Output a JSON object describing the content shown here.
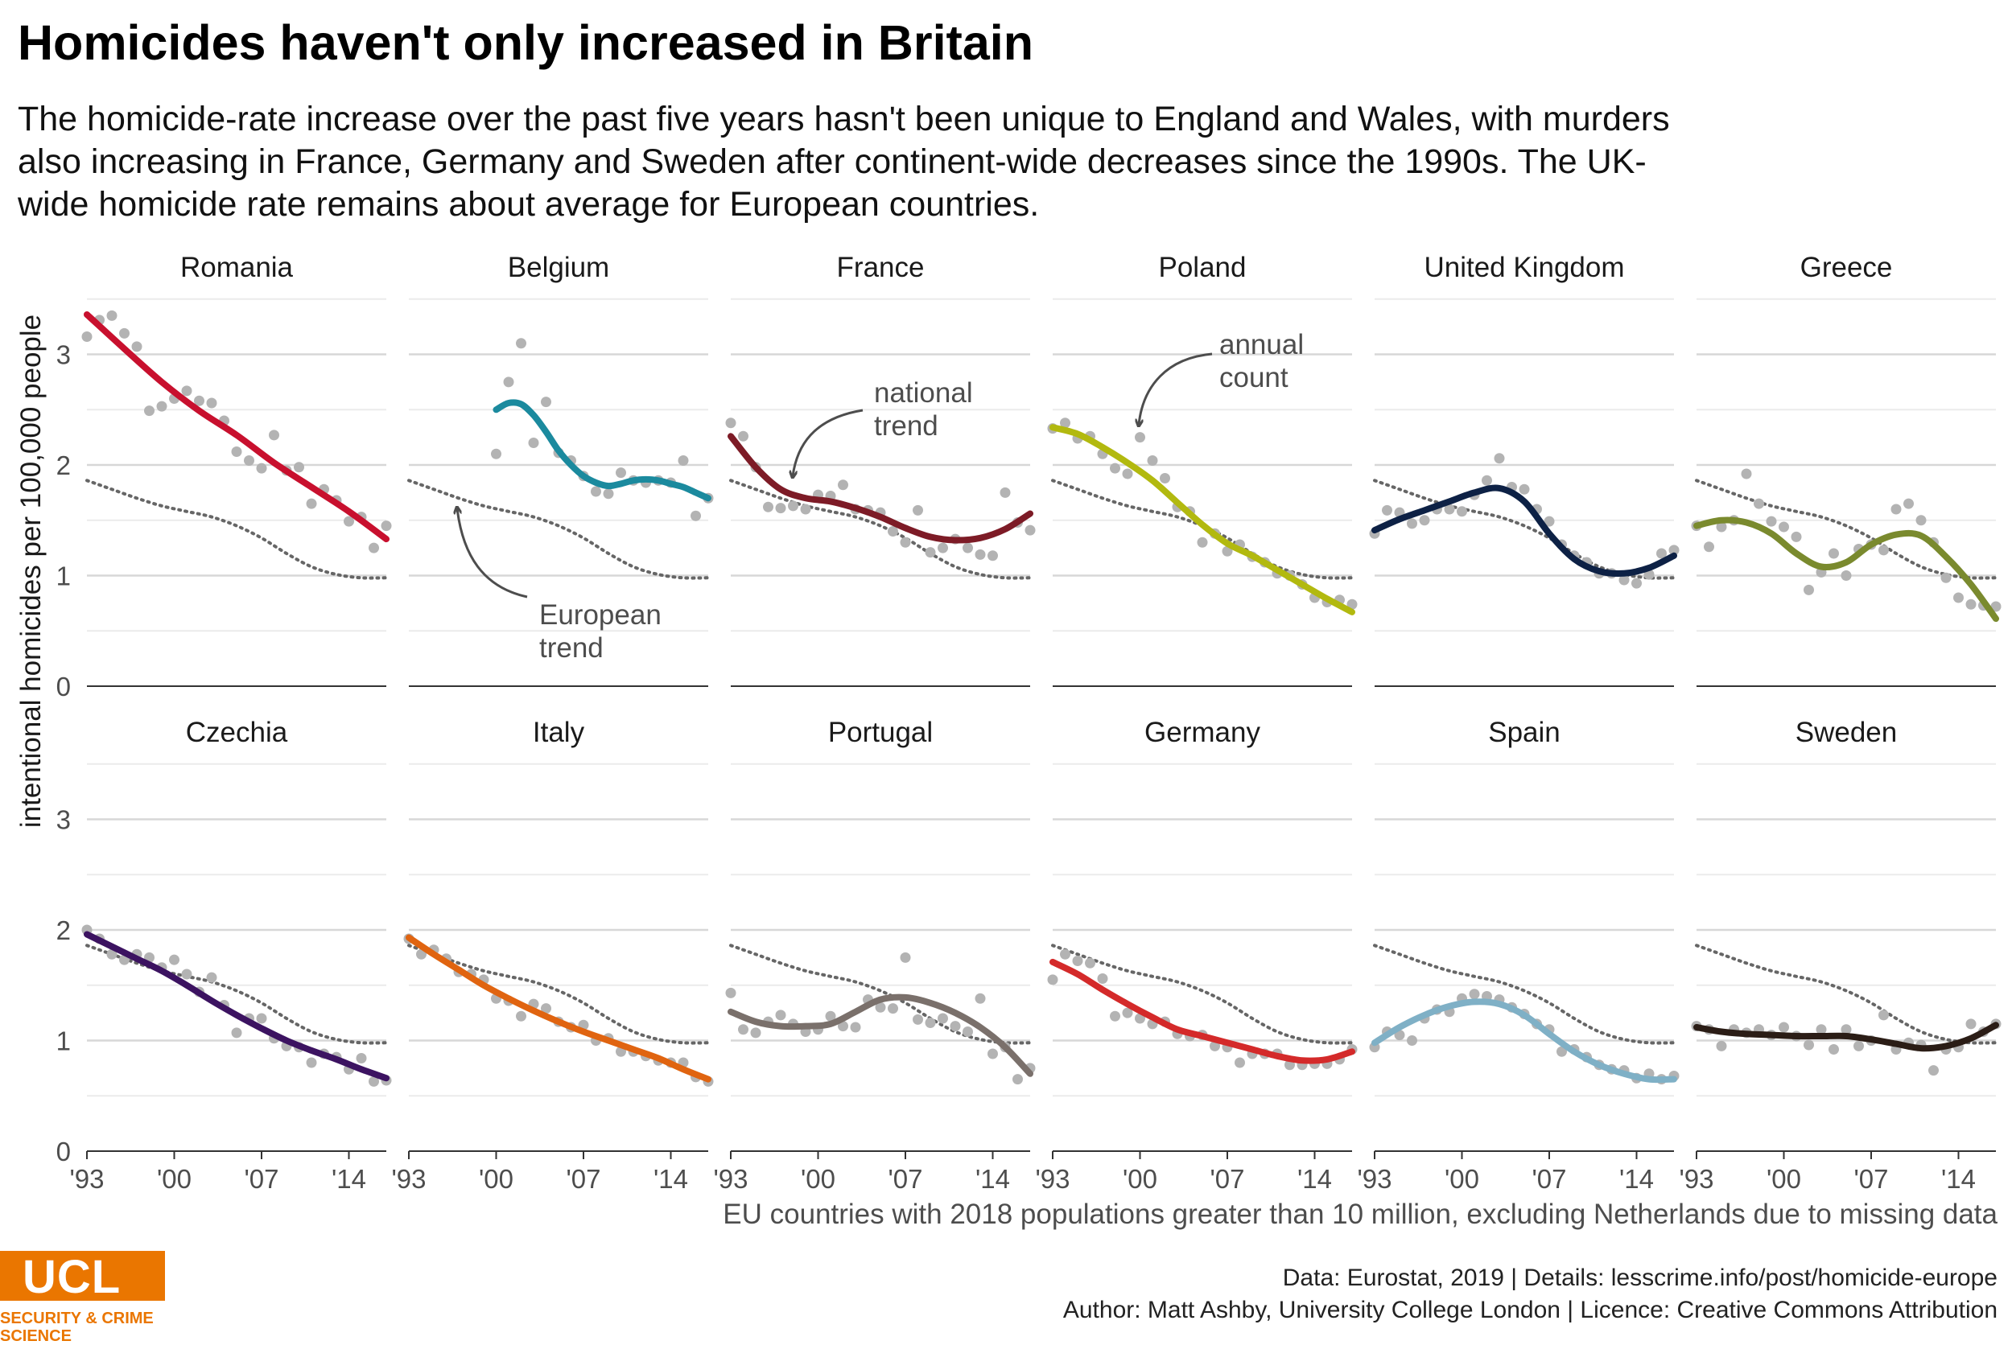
{
  "header": {
    "title": "Homicides haven't only increased in Britain",
    "subtitle": "The homicide-rate increase over the past five years hasn't been unique to England and Wales, with murders also increasing in France, Germany and Sweden after continent-wide decreases since the 1990s. The UK-wide homicide rate remains about average for European countries."
  },
  "footer": {
    "caption": "EU countries with 2018 populations greater than 10 million, excluding Netherlands due to missing data",
    "data_credit": "Data: Eurostat, 2019 |  Details: lesscrime.info/post/homicide-europe",
    "author_credit": "Author: Matt Ashby, University College London |  Licence: Creative Commons Attribution"
  },
  "logo": {
    "wordmark": "UCL",
    "department": "SECURITY & CRIME SCIENCE",
    "color": "#ea7600"
  },
  "chart_data": {
    "type": "line",
    "ylabel": "intentional homicides per 100,000 people",
    "ylim": [
      0,
      3.5
    ],
    "yticks": [
      0,
      1,
      2,
      3
    ],
    "xlim": [
      1993,
      2017
    ],
    "xticks": [
      1993,
      2000,
      2007,
      2014
    ],
    "xticklabels": [
      "'93",
      "'00",
      "'07",
      "'14"
    ],
    "annotations": {
      "european_trend": "European trend",
      "national_trend": "national trend",
      "annual_count": "annual count"
    },
    "european_trend": {
      "x": [
        1993,
        1995,
        1997,
        1999,
        2001,
        2003,
        2005,
        2007,
        2009,
        2011,
        2013,
        2015,
        2017
      ],
      "y": [
        1.86,
        1.78,
        1.7,
        1.63,
        1.58,
        1.53,
        1.45,
        1.34,
        1.2,
        1.08,
        1.01,
        0.98,
        0.98
      ]
    },
    "panels": [
      {
        "country": "Romania",
        "color": "#c8102e",
        "points_x": [
          1993,
          1994,
          1995,
          1996,
          1997,
          1998,
          1999,
          2000,
          2001,
          2002,
          2003,
          2004,
          2005,
          2006,
          2007,
          2008,
          2009,
          2010,
          2011,
          2012,
          2013,
          2014,
          2015,
          2016,
          2017
        ],
        "points_y": [
          3.16,
          3.31,
          3.35,
          3.19,
          3.07,
          2.49,
          2.53,
          2.6,
          2.67,
          2.58,
          2.56,
          2.4,
          2.12,
          2.04,
          1.97,
          2.27,
          1.95,
          1.98,
          1.65,
          1.78,
          1.68,
          1.49,
          1.53,
          1.25,
          1.45
        ],
        "trend_x": [
          1993,
          1996,
          1999,
          2002,
          2005,
          2008,
          2011,
          2014,
          2017
        ],
        "trend_y": [
          3.36,
          3.05,
          2.75,
          2.49,
          2.27,
          2.02,
          1.8,
          1.58,
          1.33
        ]
      },
      {
        "country": "Belgium",
        "color": "#1b8a9e",
        "points_x": [
          2000,
          2001,
          2002,
          2003,
          2004,
          2005,
          2006,
          2007,
          2008,
          2009,
          2010,
          2011,
          2012,
          2013,
          2014,
          2015,
          2016,
          2017
        ],
        "points_y": [
          2.1,
          2.75,
          3.1,
          2.2,
          2.57,
          2.11,
          2.04,
          1.9,
          1.76,
          1.74,
          1.93,
          1.86,
          1.84,
          1.86,
          1.84,
          2.04,
          1.54,
          1.7
        ],
        "trend_x": [
          2000,
          2001,
          2002,
          2003,
          2004,
          2005,
          2006,
          2007,
          2008,
          2009,
          2010,
          2011,
          2012,
          2013,
          2014,
          2015,
          2016,
          2017
        ],
        "trend_y": [
          2.5,
          2.56,
          2.55,
          2.45,
          2.3,
          2.13,
          2.0,
          1.9,
          1.84,
          1.81,
          1.83,
          1.86,
          1.87,
          1.86,
          1.83,
          1.8,
          1.75,
          1.7
        ]
      },
      {
        "country": "France",
        "color": "#7d1b26",
        "points_x": [
          1993,
          1994,
          1995,
          1996,
          1997,
          1998,
          1999,
          2000,
          2001,
          2002,
          2003,
          2004,
          2005,
          2006,
          2007,
          2008,
          2009,
          2010,
          2011,
          2012,
          2013,
          2014,
          2015,
          2016,
          2017
        ],
        "points_y": [
          2.38,
          2.26,
          1.98,
          1.62,
          1.61,
          1.63,
          1.6,
          1.73,
          1.72,
          1.82,
          1.6,
          1.59,
          1.57,
          1.4,
          1.3,
          1.59,
          1.21,
          1.25,
          1.33,
          1.25,
          1.19,
          1.18,
          1.75,
          1.48,
          1.41
        ],
        "trend_x": [
          1993,
          1995,
          1997,
          1999,
          2001,
          2003,
          2005,
          2007,
          2009,
          2011,
          2013,
          2015,
          2017
        ],
        "trend_y": [
          2.26,
          1.98,
          1.78,
          1.7,
          1.67,
          1.61,
          1.53,
          1.43,
          1.35,
          1.32,
          1.34,
          1.42,
          1.56
        ]
      },
      {
        "country": "Poland",
        "color": "#b2b90f",
        "points_x": [
          1993,
          1994,
          1995,
          1996,
          1997,
          1998,
          1999,
          2000,
          2001,
          2002,
          2003,
          2004,
          2005,
          2006,
          2007,
          2008,
          2009,
          2010,
          2011,
          2012,
          2013,
          2014,
          2015,
          2016,
          2017
        ],
        "points_y": [
          2.33,
          2.38,
          2.24,
          2.26,
          2.1,
          1.97,
          1.92,
          2.25,
          2.04,
          1.88,
          1.62,
          1.58,
          1.3,
          1.38,
          1.22,
          1.28,
          1.17,
          1.12,
          1.02,
          1.0,
          0.92,
          0.8,
          0.76,
          0.78,
          0.74
        ],
        "trend_x": [
          1993,
          1995,
          1997,
          1999,
          2001,
          2003,
          2005,
          2007,
          2009,
          2011,
          2013,
          2015,
          2017
        ],
        "trend_y": [
          2.34,
          2.28,
          2.16,
          2.02,
          1.86,
          1.66,
          1.46,
          1.29,
          1.18,
          1.05,
          0.92,
          0.79,
          0.67
        ]
      },
      {
        "country": "United Kingdom",
        "color": "#0d2145",
        "points_x": [
          1993,
          1994,
          1995,
          1996,
          1997,
          1998,
          1999,
          2000,
          2001,
          2002,
          2003,
          2004,
          2005,
          2006,
          2007,
          2008,
          2009,
          2010,
          2011,
          2012,
          2013,
          2014,
          2015,
          2016,
          2017
        ],
        "points_y": [
          1.38,
          1.59,
          1.57,
          1.47,
          1.5,
          1.6,
          1.6,
          1.58,
          1.73,
          1.86,
          2.06,
          1.8,
          1.78,
          1.6,
          1.49,
          1.28,
          1.18,
          1.12,
          1.02,
          1.02,
          0.96,
          0.93,
          1.01,
          1.2,
          1.23
        ],
        "trend_x": [
          1993,
          1995,
          1997,
          1999,
          2001,
          2003,
          2005,
          2007,
          2009,
          2011,
          2013,
          2015,
          2017
        ],
        "trend_y": [
          1.41,
          1.51,
          1.59,
          1.67,
          1.75,
          1.79,
          1.67,
          1.38,
          1.15,
          1.04,
          1.02,
          1.07,
          1.18
        ]
      },
      {
        "country": "Greece",
        "color": "#7a8a2e",
        "points_x": [
          1993,
          1994,
          1995,
          1996,
          1997,
          1998,
          1999,
          2000,
          2001,
          2002,
          2003,
          2004,
          2005,
          2006,
          2007,
          2008,
          2009,
          2010,
          2011,
          2012,
          2013,
          2014,
          2015,
          2016,
          2017
        ],
        "points_y": [
          1.45,
          1.26,
          1.44,
          1.5,
          1.92,
          1.65,
          1.49,
          1.44,
          1.35,
          0.87,
          1.03,
          1.2,
          1.0,
          1.24,
          1.28,
          1.23,
          1.6,
          1.65,
          1.5,
          1.3,
          0.98,
          0.8,
          0.74,
          0.73,
          0.72
        ],
        "trend_x": [
          1993,
          1995,
          1997,
          1999,
          2001,
          2003,
          2005,
          2007,
          2009,
          2011,
          2013,
          2015,
          2017
        ],
        "trend_y": [
          1.45,
          1.5,
          1.48,
          1.38,
          1.2,
          1.08,
          1.12,
          1.28,
          1.37,
          1.36,
          1.17,
          0.92,
          0.61
        ]
      },
      {
        "country": "Czechia",
        "color": "#3c1361",
        "points_x": [
          1993,
          1994,
          1995,
          1996,
          1997,
          1998,
          1999,
          2000,
          2001,
          2002,
          2003,
          2004,
          2005,
          2006,
          2007,
          2008,
          2009,
          2010,
          2011,
          2012,
          2013,
          2014,
          2015,
          2016,
          2017
        ],
        "points_y": [
          2.0,
          1.92,
          1.78,
          1.73,
          1.78,
          1.75,
          1.66,
          1.73,
          1.6,
          1.44,
          1.57,
          1.32,
          1.07,
          1.2,
          1.2,
          1.02,
          0.95,
          0.94,
          0.8,
          0.88,
          0.85,
          0.74,
          0.84,
          0.63,
          0.64
        ],
        "trend_x": [
          1993,
          1995,
          1997,
          1999,
          2001,
          2003,
          2005,
          2007,
          2009,
          2011,
          2013,
          2015,
          2017
        ],
        "trend_y": [
          1.96,
          1.85,
          1.74,
          1.63,
          1.5,
          1.36,
          1.23,
          1.11,
          1.0,
          0.91,
          0.83,
          0.74,
          0.66
        ]
      },
      {
        "country": "Italy",
        "color": "#e06410",
        "points_x": [
          1993,
          1994,
          1995,
          1996,
          1997,
          1998,
          1999,
          2000,
          2001,
          2002,
          2003,
          2004,
          2005,
          2006,
          2007,
          2008,
          2009,
          2010,
          2011,
          2012,
          2013,
          2014,
          2015,
          2016,
          2017
        ],
        "points_y": [
          1.92,
          1.78,
          1.82,
          1.74,
          1.62,
          1.6,
          1.55,
          1.38,
          1.36,
          1.22,
          1.33,
          1.29,
          1.17,
          1.12,
          1.14,
          1.0,
          1.02,
          0.9,
          0.9,
          0.86,
          0.82,
          0.8,
          0.8,
          0.67,
          0.63
        ],
        "trend_x": [
          1993,
          1995,
          1997,
          1999,
          2001,
          2003,
          2005,
          2007,
          2009,
          2011,
          2013,
          2015,
          2017
        ],
        "trend_y": [
          1.93,
          1.78,
          1.64,
          1.5,
          1.38,
          1.27,
          1.17,
          1.08,
          1.0,
          0.92,
          0.84,
          0.74,
          0.65
        ]
      },
      {
        "country": "Portugal",
        "color": "#7a706b",
        "points_x": [
          1993,
          1994,
          1995,
          1996,
          1997,
          1998,
          1999,
          2000,
          2001,
          2002,
          2003,
          2004,
          2005,
          2006,
          2007,
          2008,
          2009,
          2010,
          2011,
          2012,
          2013,
          2014,
          2015,
          2016,
          2017
        ],
        "points_y": [
          1.43,
          1.1,
          1.07,
          1.17,
          1.23,
          1.15,
          1.08,
          1.1,
          1.22,
          1.13,
          1.12,
          1.37,
          1.3,
          1.29,
          1.75,
          1.19,
          1.16,
          1.2,
          1.13,
          1.08,
          1.38,
          0.88,
          0.94,
          0.65,
          0.75
        ],
        "trend_x": [
          1993,
          1995,
          1997,
          1999,
          2001,
          2003,
          2005,
          2007,
          2009,
          2011,
          2013,
          2015,
          2017
        ],
        "trend_y": [
          1.26,
          1.17,
          1.13,
          1.13,
          1.15,
          1.26,
          1.37,
          1.39,
          1.34,
          1.25,
          1.12,
          0.94,
          0.7
        ]
      },
      {
        "country": "Germany",
        "color": "#d42a2a",
        "points_x": [
          1993,
          1994,
          1995,
          1996,
          1997,
          1998,
          1999,
          2000,
          2001,
          2002,
          2003,
          2004,
          2005,
          2006,
          2007,
          2008,
          2009,
          2010,
          2011,
          2012,
          2013,
          2014,
          2015,
          2016,
          2017
        ],
        "points_y": [
          1.55,
          1.78,
          1.72,
          1.7,
          1.56,
          1.22,
          1.25,
          1.2,
          1.15,
          1.17,
          1.06,
          1.04,
          1.05,
          0.95,
          0.94,
          0.8,
          0.88,
          0.88,
          0.88,
          0.78,
          0.78,
          0.79,
          0.79,
          0.83,
          0.92
        ],
        "trend_x": [
          1993,
          1995,
          1997,
          1999,
          2001,
          2003,
          2005,
          2007,
          2009,
          2011,
          2013,
          2015,
          2017
        ],
        "trend_y": [
          1.71,
          1.6,
          1.46,
          1.33,
          1.21,
          1.1,
          1.04,
          0.98,
          0.92,
          0.86,
          0.82,
          0.83,
          0.9
        ]
      },
      {
        "country": "Spain",
        "color": "#7fb0c6",
        "points_x": [
          1993,
          1994,
          1995,
          1996,
          1997,
          1998,
          1999,
          2000,
          2001,
          2002,
          2003,
          2004,
          2005,
          2006,
          2007,
          2008,
          2009,
          2010,
          2011,
          2012,
          2013,
          2014,
          2015,
          2016,
          2017
        ],
        "points_y": [
          0.94,
          1.08,
          1.05,
          1.0,
          1.2,
          1.28,
          1.26,
          1.38,
          1.42,
          1.4,
          1.37,
          1.3,
          1.24,
          1.15,
          1.1,
          0.9,
          0.92,
          0.85,
          0.78,
          0.74,
          0.73,
          0.66,
          0.7,
          0.65,
          0.68
        ],
        "trend_x": [
          1993,
          1995,
          1997,
          1999,
          2001,
          2003,
          2005,
          2007,
          2009,
          2011,
          2013,
          2015,
          2017
        ],
        "trend_y": [
          0.98,
          1.12,
          1.23,
          1.31,
          1.35,
          1.33,
          1.23,
          1.06,
          0.9,
          0.78,
          0.7,
          0.65,
          0.65
        ]
      },
      {
        "country": "Sweden",
        "color": "#2b1d16",
        "points_x": [
          1993,
          1994,
          1995,
          1996,
          1997,
          1998,
          1999,
          2000,
          2001,
          2002,
          2003,
          2004,
          2005,
          2006,
          2007,
          2008,
          2009,
          2010,
          2011,
          2012,
          2013,
          2014,
          2015,
          2016,
          2017
        ],
        "points_y": [
          1.13,
          1.1,
          0.95,
          1.1,
          1.07,
          1.1,
          1.05,
          1.12,
          1.04,
          0.96,
          1.1,
          0.92,
          1.1,
          0.95,
          1.0,
          1.23,
          0.92,
          0.98,
          0.96,
          0.73,
          0.92,
          0.94,
          1.15,
          1.08,
          1.15
        ],
        "trend_x": [
          1993,
          1995,
          1997,
          1999,
          2001,
          2003,
          2005,
          2007,
          2009,
          2011,
          2013,
          2015,
          2017
        ],
        "trend_y": [
          1.12,
          1.08,
          1.06,
          1.05,
          1.04,
          1.04,
          1.04,
          1.01,
          0.97,
          0.93,
          0.95,
          1.02,
          1.14
        ]
      }
    ]
  }
}
